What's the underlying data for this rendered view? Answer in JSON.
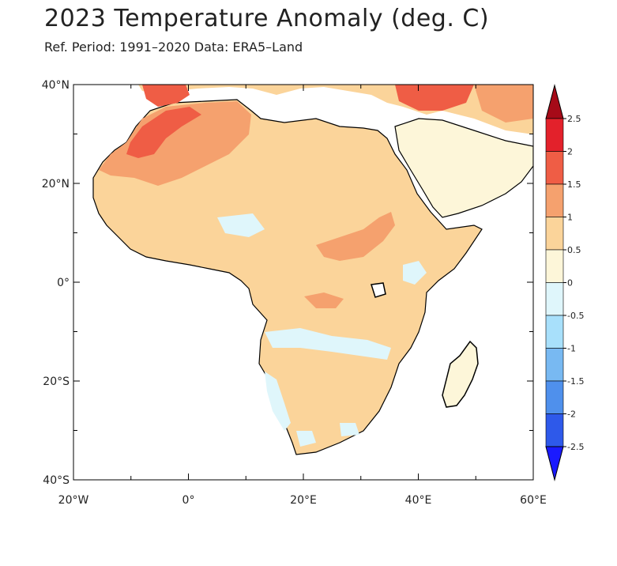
{
  "title": "2023 Temperature Anomaly (deg. C)",
  "subtitle": "Ref. Period: 1991–2020 Data: ERA5–Land",
  "map": {
    "lon_range": [
      -20,
      60
    ],
    "lat_range": [
      -40,
      40
    ],
    "x_ticks": [
      {
        "lon": -20,
        "label": "20°W"
      },
      {
        "lon": 0,
        "label": "0°"
      },
      {
        "lon": 20,
        "label": "20°E"
      },
      {
        "lon": 40,
        "label": "40°E"
      },
      {
        "lon": 60,
        "label": "60°E"
      }
    ],
    "y_ticks": [
      {
        "lat": 40,
        "label": "40°N"
      },
      {
        "lat": 20,
        "label": "20°N"
      },
      {
        "lat": 0,
        "label": "0°"
      },
      {
        "lat": -20,
        "label": "20°S"
      },
      {
        "lat": -40,
        "label": "40°S"
      }
    ]
  },
  "colorbar": {
    "levels": [
      "-2.5",
      "-2",
      "-1.5",
      "-1",
      "-0.5",
      "0",
      "0.5",
      "1",
      "1.5",
      "2",
      "2.5"
    ],
    "colors": [
      "#1a1aff",
      "#2e59ea",
      "#4f90ec",
      "#78b9f2",
      "#a8e0fb",
      "#dff6fb",
      "#fdf6d9",
      "#fbd49a",
      "#f5a16e",
      "#ef5d45",
      "#e3212b",
      "#a60a18"
    ]
  },
  "chart_data": {
    "type": "heatmap",
    "title": "2023 Temperature Anomaly (deg. C)",
    "subtitle": "Ref. Period: 1991–2020 Data: ERA5–Land",
    "xlim": [
      -20,
      60
    ],
    "ylim": [
      -40,
      40
    ],
    "color_scale": [
      -2.5,
      -2,
      -1.5,
      -1,
      -0.5,
      0,
      0.5,
      1,
      1.5,
      2,
      2.5
    ]
  }
}
